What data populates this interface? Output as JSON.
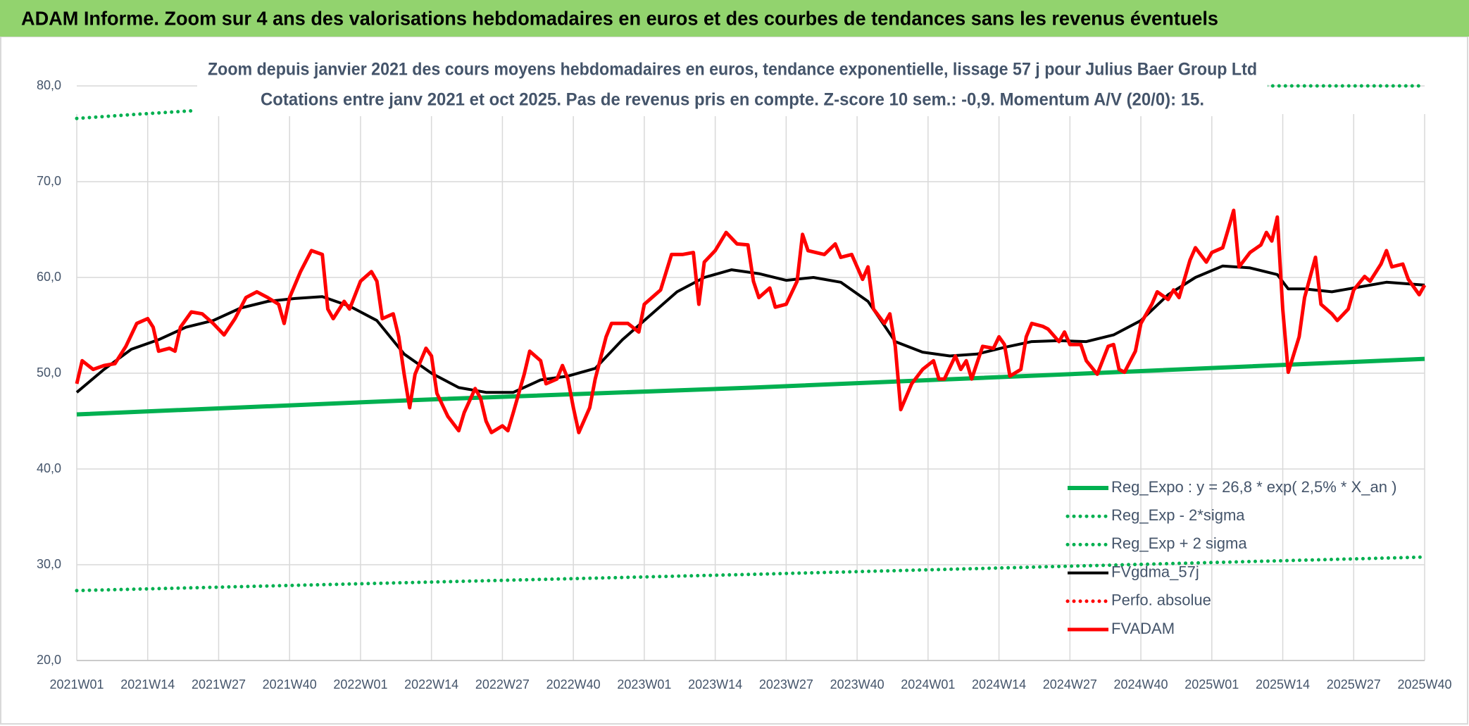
{
  "chart_data": {
    "type": "line",
    "title": "ADAM Informe. Zoom sur 4 ans des valorisations hebdomadaires en euros et des courbes de tendances sans les revenus éventuels",
    "subtitle": [
      "Zoom depuis janvier 2021 des cours moyens hebdomadaires en euros, tendance exponentielle, lissage 57 j pour Julius Baer Group Ltd",
      "Cotations entre janv 2021 et oct 2025. Pas de revenus pris en compte. Z-score 10 sem.: -0,9. Momentum A/V (20/0): 15."
    ],
    "xlim": [
      0,
      247
    ],
    "xticks": [
      {
        "value": 0,
        "label": "2021W01"
      },
      {
        "value": 13,
        "label": "2021W14"
      },
      {
        "value": 26,
        "label": "2021W27"
      },
      {
        "value": 39,
        "label": "2021W40"
      },
      {
        "value": 52,
        "label": "2022W01"
      },
      {
        "value": 65,
        "label": "2022W14"
      },
      {
        "value": 78,
        "label": "2022W27"
      },
      {
        "value": 91,
        "label": "2022W40"
      },
      {
        "value": 104,
        "label": "2023W01"
      },
      {
        "value": 117,
        "label": "2023W14"
      },
      {
        "value": 130,
        "label": "2023W27"
      },
      {
        "value": 143,
        "label": "2023W40"
      },
      {
        "value": 156,
        "label": "2024W01"
      },
      {
        "value": 169,
        "label": "2024W14"
      },
      {
        "value": 182,
        "label": "2024W27"
      },
      {
        "value": 195,
        "label": "2024W40"
      },
      {
        "value": 208,
        "label": "2025W01"
      },
      {
        "value": 221,
        "label": "2025W14"
      },
      {
        "value": 234,
        "label": "2025W27"
      },
      {
        "value": 247,
        "label": "2025W40"
      }
    ],
    "ylim": [
      20,
      80
    ],
    "yticks": [
      {
        "value": 20,
        "label": "20,0"
      },
      {
        "value": 30,
        "label": "30,0"
      },
      {
        "value": 40,
        "label": "40,0"
      },
      {
        "value": 50,
        "label": "50,0"
      },
      {
        "value": 60,
        "label": "60,0"
      },
      {
        "value": 70,
        "label": "70,0"
      },
      {
        "value": 80,
        "label": "80,0"
      }
    ],
    "grid": true,
    "legend": "lower right",
    "series": [
      {
        "name": "Reg_Expo : y = 26,8 * exp( 2,5% *  X_an )",
        "color": "#00b050",
        "style": "solid",
        "x": [
          0,
          62,
          124,
          186,
          247
        ],
        "values": [
          45.7,
          47.2,
          48.5,
          50.0,
          51.5
        ]
      },
      {
        "name": "Reg_Exp - 2*sigma",
        "color": "#00b050",
        "style": "dotted",
        "x": [
          0,
          124,
          247
        ],
        "values": [
          27.3,
          29.0,
          30.8
        ]
      },
      {
        "name": "Reg_Exp + 2 sigma",
        "color": "#00b050",
        "style": "dotted",
        "x": [
          0,
          10,
          21,
          22,
          218,
          247
        ],
        "values": [
          76.6,
          77.0,
          77.4,
          null,
          80,
          80
        ]
      },
      {
        "name": "FVgdma_57j",
        "color": "#000000",
        "style": "solid",
        "x": [
          0,
          5,
          10,
          15,
          20,
          25,
          30,
          35,
          40,
          45,
          50,
          55,
          60,
          65,
          70,
          75,
          80,
          85,
          90,
          95,
          100,
          105,
          110,
          115,
          120,
          125,
          130,
          135,
          140,
          145,
          150,
          155,
          160,
          165,
          170,
          175,
          180,
          185,
          190,
          195,
          200,
          205,
          210,
          215,
          220,
          222,
          225,
          230,
          235,
          240,
          247
        ],
        "values": [
          48.0,
          50.4,
          52.5,
          53.5,
          54.8,
          55.5,
          56.8,
          57.5,
          57.8,
          58.0,
          57.0,
          55.5,
          52.0,
          50.0,
          48.5,
          48.0,
          48.0,
          49.3,
          49.7,
          50.5,
          53.5,
          56.0,
          58.5,
          60.0,
          60.8,
          60.4,
          59.7,
          60.0,
          59.5,
          57.5,
          53.3,
          52.2,
          51.8,
          52.0,
          52.7,
          53.3,
          53.4,
          53.3,
          54.0,
          55.5,
          58.2,
          60.0,
          61.2,
          61.0,
          60.3,
          58.8,
          58.8,
          58.5,
          59.0,
          59.5,
          59.2
        ]
      },
      {
        "name": "Perfo. absolue",
        "color": "#ff0000",
        "style": "dotted",
        "x": [],
        "values": []
      },
      {
        "name": "FVADAM",
        "color": "#ff0000",
        "style": "solid",
        "x": [
          0,
          1,
          3,
          5,
          7,
          9,
          11,
          13,
          14,
          15,
          17,
          18,
          19,
          21,
          23,
          25,
          27,
          29,
          31,
          33,
          35,
          37,
          38,
          39,
          41,
          43,
          45,
          46,
          47,
          49,
          50,
          52,
          54,
          55,
          56,
          58,
          59,
          60,
          61,
          62,
          64,
          65,
          66,
          68,
          70,
          71,
          73,
          74,
          75,
          76,
          78,
          79,
          80,
          82,
          83,
          85,
          86,
          88,
          89,
          90,
          91,
          92,
          94,
          95,
          97,
          98,
          101,
          103,
          104,
          107,
          109,
          111,
          113,
          114,
          115,
          117,
          119,
          121,
          123,
          124,
          125,
          127,
          128,
          130,
          132,
          133,
          134,
          137,
          139,
          140,
          142,
          144,
          145,
          146,
          148,
          149,
          150,
          151,
          153,
          155,
          157,
          158,
          159,
          161,
          162,
          163,
          164,
          166,
          168,
          169,
          170,
          171,
          173,
          174,
          175,
          177,
          178,
          180,
          181,
          182,
          184,
          185,
          187,
          189,
          190,
          191,
          192,
          194,
          195,
          197,
          198,
          200,
          201,
          202,
          204,
          205,
          207,
          208,
          210,
          211,
          212,
          213,
          215,
          217,
          218,
          219,
          220,
          221,
          222,
          224,
          225,
          227,
          228,
          230,
          231,
          233,
          234,
          236,
          237,
          239,
          240,
          241,
          243,
          244,
          246,
          247
        ],
        "values": [
          48.9,
          51.3,
          50.4,
          50.8,
          51.0,
          52.8,
          55.2,
          55.7,
          54.8,
          52.3,
          52.6,
          52.3,
          54.8,
          56.4,
          56.2,
          55.2,
          54.0,
          55.7,
          57.9,
          58.5,
          57.9,
          57.2,
          55.2,
          57.9,
          60.6,
          62.8,
          62.4,
          56.7,
          55.7,
          57.5,
          56.7,
          59.6,
          60.6,
          59.6,
          55.7,
          56.2,
          53.8,
          49.9,
          46.4,
          49.9,
          52.6,
          51.8,
          47.9,
          45.5,
          44.0,
          45.9,
          48.4,
          47.4,
          45.0,
          43.8,
          44.5,
          44.0,
          45.9,
          49.9,
          52.3,
          51.3,
          48.9,
          49.4,
          50.8,
          49.4,
          46.4,
          43.8,
          46.4,
          49.4,
          53.8,
          55.2,
          55.2,
          54.3,
          57.2,
          58.7,
          62.4,
          62.4,
          62.6,
          57.2,
          61.6,
          62.8,
          64.7,
          63.5,
          63.4,
          59.6,
          57.9,
          58.9,
          56.9,
          57.2,
          59.6,
          64.5,
          62.8,
          62.4,
          63.5,
          62.1,
          62.4,
          59.8,
          61.1,
          56.7,
          55.2,
          56.2,
          52.8,
          46.2,
          48.9,
          50.4,
          51.3,
          49.4,
          49.4,
          51.8,
          50.4,
          51.3,
          49.4,
          52.8,
          52.6,
          53.8,
          53.0,
          49.7,
          50.4,
          53.8,
          55.2,
          54.9,
          54.6,
          53.3,
          54.3,
          53.0,
          53.0,
          51.3,
          49.9,
          52.8,
          53.0,
          50.4,
          50.1,
          52.3,
          55.2,
          57.2,
          58.5,
          57.7,
          58.7,
          57.9,
          61.8,
          63.1,
          61.6,
          62.6,
          63.1,
          65.0,
          67.0,
          61.1,
          62.6,
          63.4,
          64.7,
          63.8,
          66.3,
          56.7,
          50.1,
          53.8,
          57.9,
          62.1,
          57.2,
          56.2,
          55.5,
          56.7,
          58.7,
          60.1,
          59.6,
          61.4,
          62.8,
          61.1,
          61.4,
          59.8,
          58.2,
          59.2
        ]
      }
    ]
  }
}
